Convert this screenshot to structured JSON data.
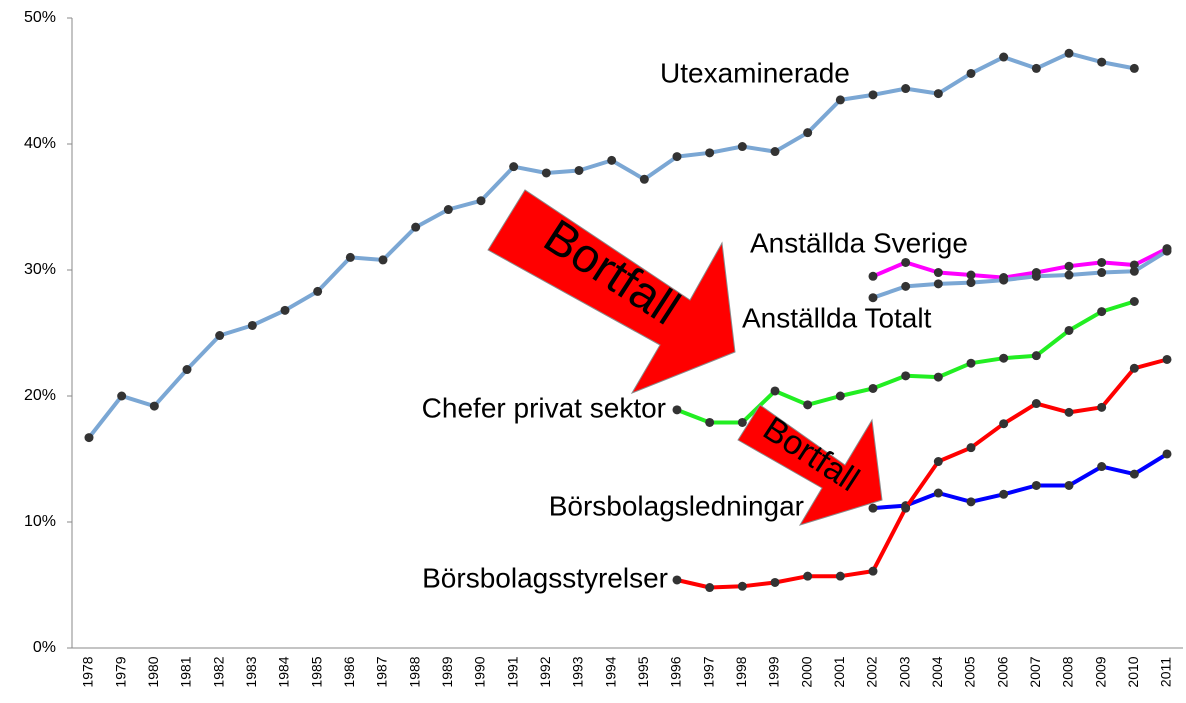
{
  "chart_data": {
    "type": "line",
    "categories": [
      "1978",
      "1979",
      "1980",
      "1981",
      "1982",
      "1983",
      "1984",
      "1985",
      "1986",
      "1987",
      "1988",
      "1989",
      "1990",
      "1991",
      "1992",
      "1993",
      "1994",
      "1995",
      "1996",
      "1997",
      "1998",
      "1999",
      "2000",
      "2001",
      "2002",
      "2003",
      "2004",
      "2005",
      "2006",
      "2007",
      "2008",
      "2009",
      "2010",
      "2011"
    ],
    "ylim": [
      0,
      50
    ],
    "yticks": [
      {
        "value": 0,
        "label": "0%"
      },
      {
        "value": 10,
        "label": "10%"
      },
      {
        "value": 20,
        "label": "20%"
      },
      {
        "value": 30,
        "label": "30%"
      },
      {
        "value": 40,
        "label": "40%"
      },
      {
        "value": 50,
        "label": "50%"
      }
    ],
    "grid": false,
    "series": [
      {
        "name": "Utexaminerade",
        "color": "#7ba7d4",
        "values": [
          16.7,
          20.0,
          19.2,
          22.1,
          24.8,
          25.6,
          26.8,
          28.3,
          31.0,
          30.8,
          33.4,
          34.8,
          35.5,
          38.2,
          37.7,
          37.9,
          38.7,
          37.2,
          39.0,
          39.3,
          39.8,
          39.4,
          40.9,
          43.5,
          43.9,
          44.4,
          44.0,
          45.6,
          46.9,
          46.0,
          47.2,
          46.5,
          46.0,
          null
        ]
      },
      {
        "name": "Anställda Sverige",
        "color": "#ff00ff",
        "values": [
          null,
          null,
          null,
          null,
          null,
          null,
          null,
          null,
          null,
          null,
          null,
          null,
          null,
          null,
          null,
          null,
          null,
          null,
          null,
          null,
          null,
          null,
          null,
          null,
          29.5,
          30.6,
          29.8,
          29.6,
          29.4,
          29.8,
          30.3,
          30.6,
          30.4,
          31.7
        ]
      },
      {
        "name": "Anställda Totalt",
        "color": "#7ba7d4",
        "values": [
          null,
          null,
          null,
          null,
          null,
          null,
          null,
          null,
          null,
          null,
          null,
          null,
          null,
          null,
          null,
          null,
          null,
          null,
          null,
          null,
          null,
          null,
          null,
          null,
          27.8,
          28.7,
          28.9,
          29.0,
          29.2,
          29.5,
          29.6,
          29.8,
          29.9,
          31.5
        ]
      },
      {
        "name": "Chefer privat sektor",
        "color": "#22ee22",
        "values": [
          null,
          null,
          null,
          null,
          null,
          null,
          null,
          null,
          null,
          null,
          null,
          null,
          null,
          null,
          null,
          null,
          null,
          null,
          18.9,
          17.9,
          17.9,
          20.4,
          19.3,
          20.0,
          20.6,
          21.6,
          21.5,
          22.6,
          23.0,
          23.2,
          25.2,
          26.7,
          27.5,
          null
        ]
      },
      {
        "name": "Börsbolagsledningar",
        "color": "#0000ff",
        "values": [
          null,
          null,
          null,
          null,
          null,
          null,
          null,
          null,
          null,
          null,
          null,
          null,
          null,
          null,
          null,
          null,
          null,
          null,
          null,
          null,
          null,
          null,
          null,
          null,
          11.1,
          11.3,
          12.3,
          11.6,
          12.2,
          12.9,
          12.9,
          14.4,
          13.8,
          15.4
        ]
      },
      {
        "name": "Börsbolagsstyrelser",
        "color": "#ff0000",
        "values": [
          null,
          null,
          null,
          null,
          null,
          null,
          null,
          null,
          null,
          null,
          null,
          null,
          null,
          null,
          null,
          null,
          null,
          null,
          5.4,
          4.8,
          4.9,
          5.2,
          5.7,
          5.7,
          6.1,
          11.1,
          14.8,
          15.9,
          17.8,
          19.4,
          18.7,
          19.1,
          22.2,
          22.9
        ]
      }
    ],
    "annotations": [
      "Bortfall",
      "Bortfall"
    ]
  }
}
